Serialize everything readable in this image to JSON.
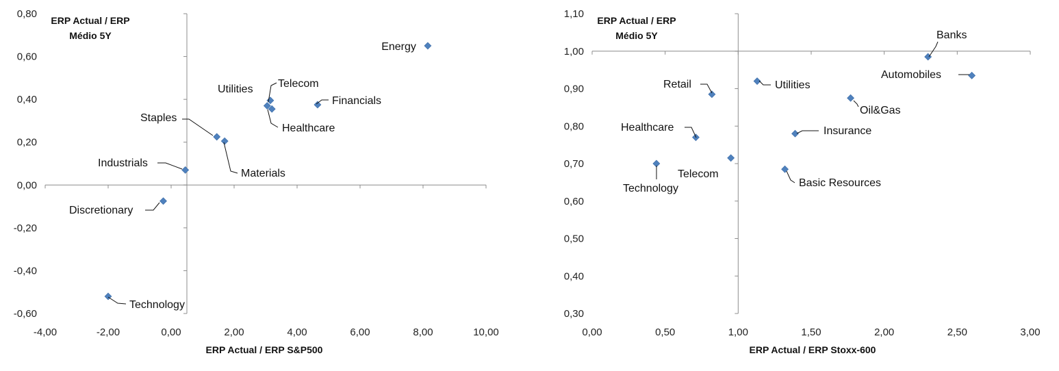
{
  "chart_data": [
    {
      "type": "scatter",
      "title": "",
      "ylabel": [
        "ERP Actual / ERP",
        "Médio 5Y"
      ],
      "xlabel": "ERP Actual / ERP S&P500",
      "xlim": [
        -4,
        10
      ],
      "ylim": [
        -0.6,
        0.8
      ],
      "xticks": [
        -4,
        -2,
        0,
        2,
        4,
        6,
        8,
        10
      ],
      "yticks": [
        -0.6,
        -0.4,
        -0.2,
        0,
        0.2,
        0.4,
        0.6,
        0.8
      ],
      "xtick_labels": [
        "-4,00",
        "-2,00",
        "0,00",
        "2,00",
        "4,00",
        "6,00",
        "8,00",
        "10,00"
      ],
      "ytick_labels": [
        "-0,60",
        "-0,40",
        "-0,20",
        "0,00",
        "0,20",
        "0,40",
        "0,60",
        "0,80"
      ],
      "yaxis_crosses_x": 0.5,
      "xaxis_crosses_y": 0,
      "points": [
        {
          "label": "Energy",
          "x": 8.15,
          "y": 0.65
        },
        {
          "label": "Telecom",
          "x": 3.15,
          "y": 0.395
        },
        {
          "label": "Utilities",
          "x": 3.05,
          "y": 0.37
        },
        {
          "label": "Healthcare",
          "x": 3.2,
          "y": 0.355
        },
        {
          "label": "Financials",
          "x": 4.65,
          "y": 0.375
        },
        {
          "label": "Staples",
          "x": 1.45,
          "y": 0.225
        },
        {
          "label": "Materials",
          "x": 1.7,
          "y": 0.205
        },
        {
          "label": "Industrials",
          "x": 0.45,
          "y": 0.07
        },
        {
          "label": "Discretionary",
          "x": -0.25,
          "y": -0.075
        },
        {
          "label": "Technology",
          "x": -2.0,
          "y": -0.52
        }
      ],
      "marker_color": "#4f81bd"
    },
    {
      "type": "scatter",
      "title": "",
      "ylabel": [
        "ERP Actual / ERP",
        "Médio 5Y"
      ],
      "xlabel": "ERP Actual / ERP Stoxx-600",
      "xlim": [
        0,
        3
      ],
      "ylim": [
        0.3,
        1.1
      ],
      "xticks": [
        0,
        0.5,
        1,
        1.5,
        2,
        2.5,
        3
      ],
      "yticks": [
        0.3,
        0.4,
        0.5,
        0.6,
        0.7,
        0.8,
        0.9,
        1.0,
        1.1
      ],
      "xtick_labels": [
        "0,00",
        "0,50",
        "1,00",
        "1,50",
        "2,00",
        "2,50",
        "3,00"
      ],
      "ytick_labels": [
        "0,30",
        "0,40",
        "0,50",
        "0,60",
        "0,70",
        "0,80",
        "0,90",
        "1,00",
        "1,10"
      ],
      "yaxis_crosses_x": 1,
      "xaxis_crosses_y": 1,
      "points": [
        {
          "label": "Banks",
          "x": 2.3,
          "y": 0.985
        },
        {
          "label": "Automobiles",
          "x": 2.6,
          "y": 0.935
        },
        {
          "label": "Retail",
          "x": 0.82,
          "y": 0.885
        },
        {
          "label": "Utilities",
          "x": 1.13,
          "y": 0.92
        },
        {
          "label": "Oil&Gas",
          "x": 1.77,
          "y": 0.875
        },
        {
          "label": "Insurance",
          "x": 1.39,
          "y": 0.78
        },
        {
          "label": "Healthcare",
          "x": 0.71,
          "y": 0.77
        },
        {
          "label": "Technology",
          "x": 0.44,
          "y": 0.7
        },
        {
          "label": "Telecom",
          "x": 0.95,
          "y": 0.715
        },
        {
          "label": "Basic Resources",
          "x": 1.32,
          "y": 0.685
        }
      ],
      "marker_color": "#4f81bd"
    }
  ]
}
